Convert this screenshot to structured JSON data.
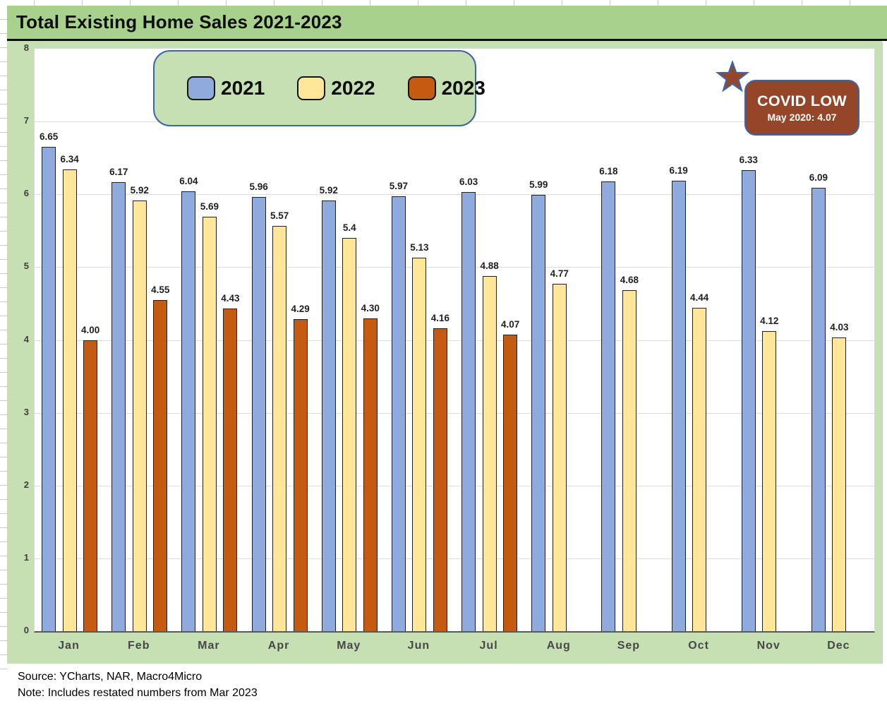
{
  "header": {
    "title": "Total Existing Home Sales 2021-2023"
  },
  "legend": {
    "items": [
      {
        "label": "2021",
        "color": "#8faadc"
      },
      {
        "label": "2022",
        "color": "#ffe699"
      },
      {
        "label": "2023",
        "color": "#c55a11"
      }
    ]
  },
  "annotation": {
    "title": "COVID LOW",
    "subtitle": "May 2020: 4.07",
    "fill": "#964628",
    "border": "#3c64a8",
    "star_icon": "star-icon"
  },
  "footer": {
    "source": "Source: YCharts, NAR, Macro4Micro",
    "note": "Note: Includes restated numbers from Mar 2023"
  },
  "chart_data": {
    "type": "bar",
    "title": "Total Existing Home Sales 2021-2023",
    "categories": [
      "Jan",
      "Feb",
      "Mar",
      "Apr",
      "May",
      "Jun",
      "Jul",
      "Aug",
      "Sep",
      "Oct",
      "Nov",
      "Dec"
    ],
    "series": [
      {
        "name": "2021",
        "color": "#8faadc",
        "values": [
          6.65,
          6.17,
          6.04,
          5.96,
          5.92,
          5.97,
          6.03,
          5.99,
          6.18,
          6.19,
          6.33,
          6.09
        ],
        "labels": [
          "6.65",
          "6.17",
          "6.04",
          "5.96",
          "5.92",
          "5.97",
          "6.03",
          "5.99",
          "6.18",
          "6.19",
          "6.33",
          "6.09"
        ]
      },
      {
        "name": "2022",
        "color": "#ffe699",
        "values": [
          6.34,
          5.92,
          5.69,
          5.57,
          5.4,
          5.13,
          4.88,
          4.77,
          4.68,
          4.44,
          4.12,
          4.03
        ],
        "labels": [
          "6.34",
          "5.92",
          "5.69",
          "5.57",
          "5.4",
          "5.13",
          "4.88",
          "4.77",
          "4.68",
          "4.44",
          "4.12",
          "4.03"
        ]
      },
      {
        "name": "2023",
        "color": "#c55a11",
        "values": [
          4.0,
          4.55,
          4.43,
          4.29,
          4.3,
          4.16,
          4.07,
          null,
          null,
          null,
          null,
          null
        ],
        "labels": [
          "4.00",
          "4.55",
          "4.43",
          "4.29",
          "4.30",
          "4.16",
          "4.07",
          null,
          null,
          null,
          null,
          null
        ]
      }
    ],
    "ylim": [
      0,
      8
    ],
    "yticks": [
      "0",
      "1",
      "2",
      "3",
      "4",
      "5",
      "6",
      "7",
      "8"
    ],
    "grid": "horizontal",
    "legend_position": "top-left",
    "bar_border_color": "#202020",
    "plot_background": "#ffffff",
    "chart_background": "#c6e0b4",
    "title_band_color": "#a9d18e"
  }
}
